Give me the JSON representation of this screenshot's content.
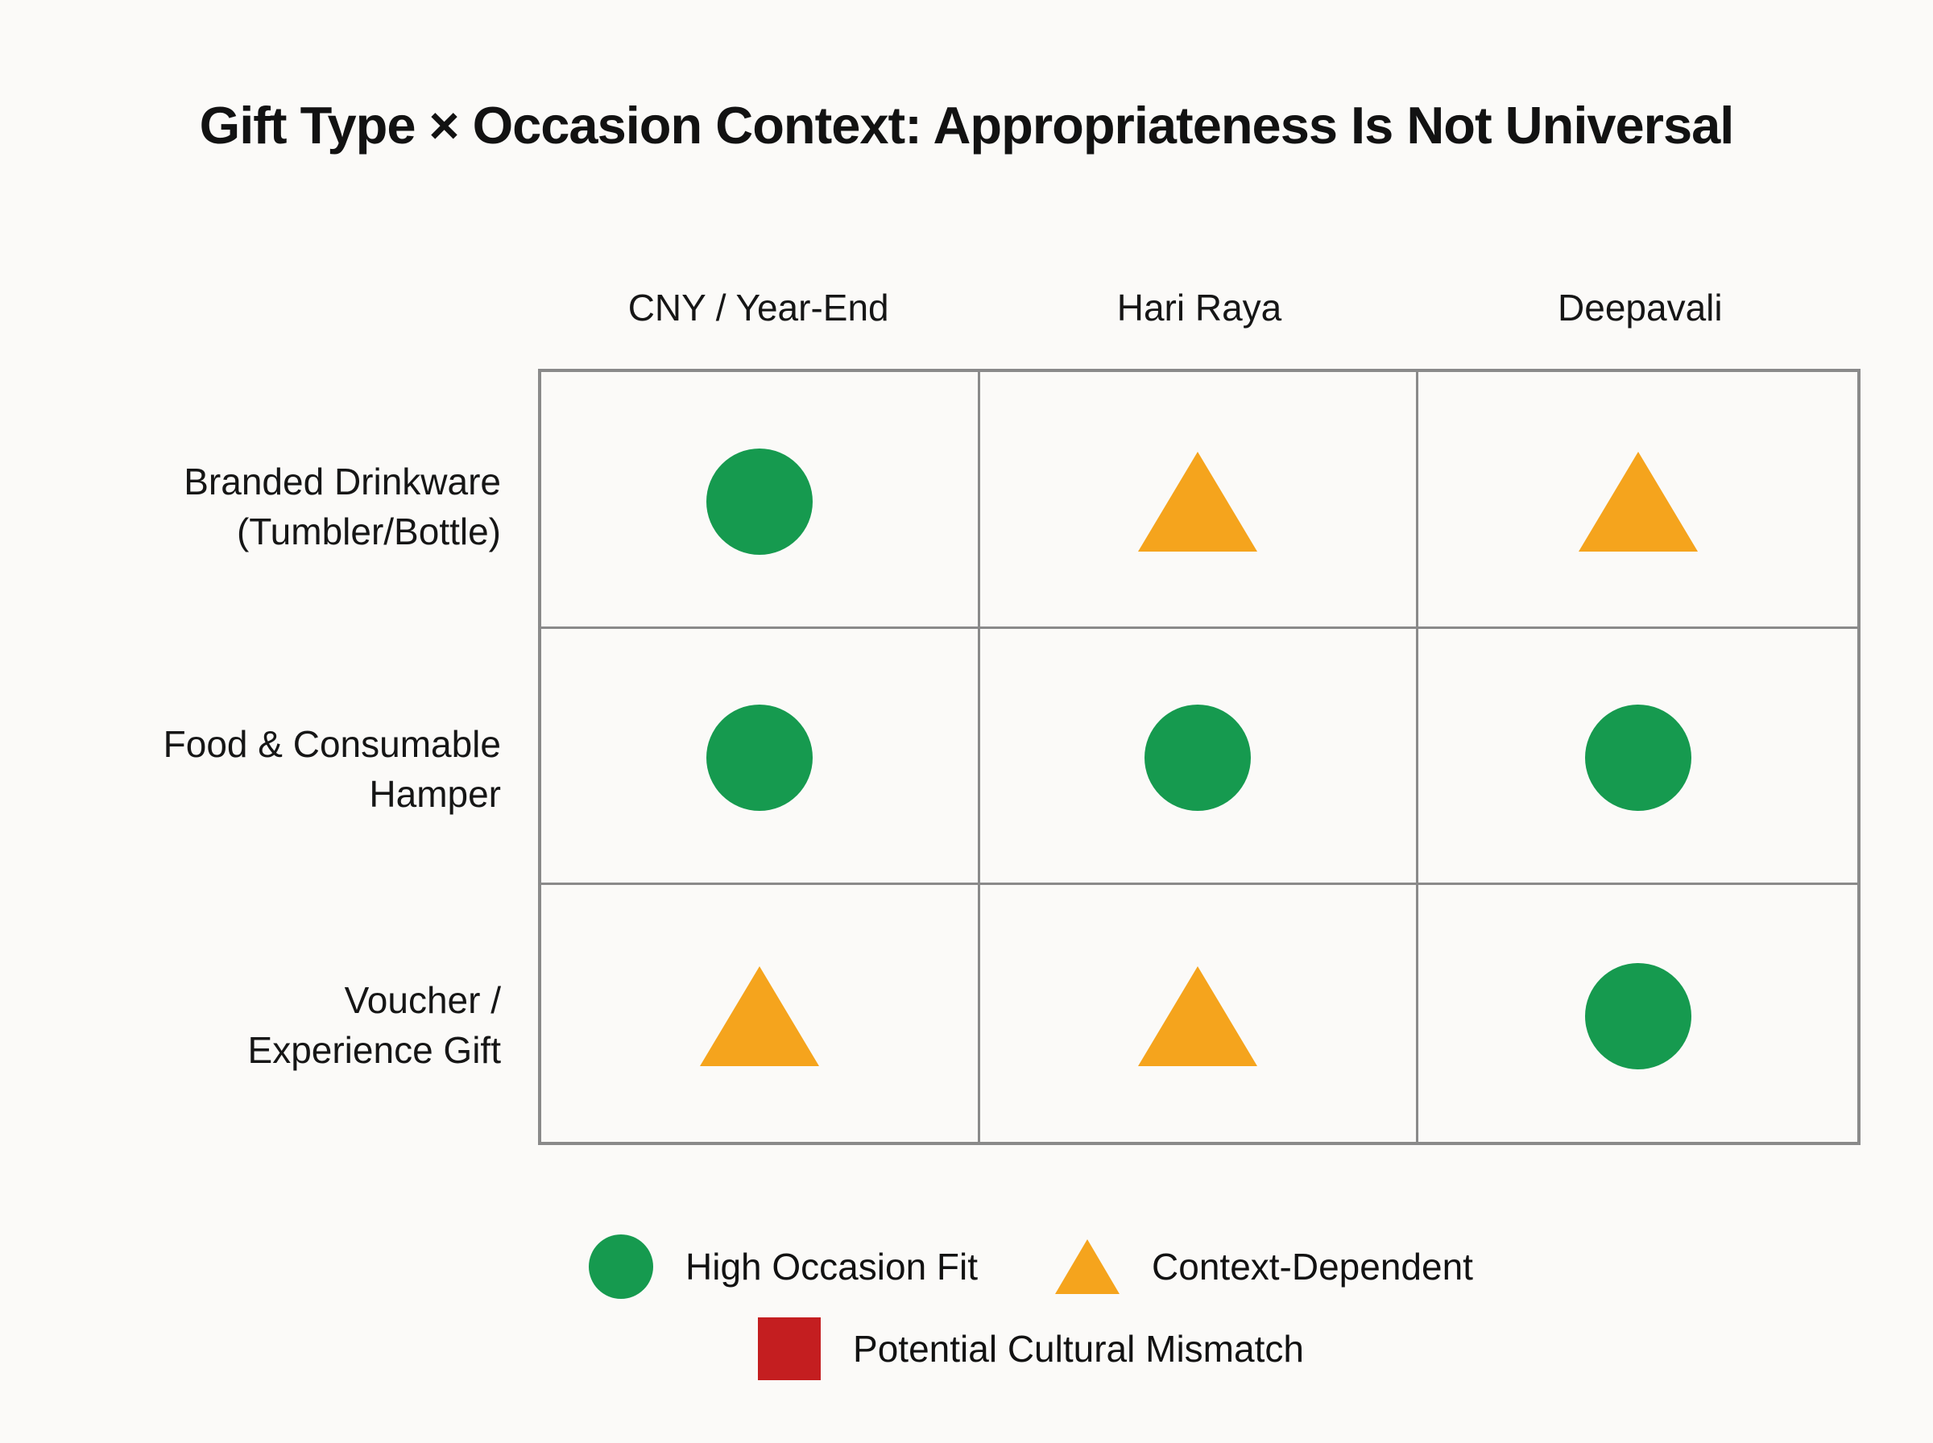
{
  "title": "Gift Type × Occasion Context: Appropriateness Is Not Universal",
  "matrix": {
    "columns": [
      "CNY / Year-End",
      "Hari Raya",
      "Deepavali"
    ],
    "rows": [
      {
        "label": [
          "Branded Drinkware",
          "(Tumbler/Bottle)"
        ],
        "cells": [
          "high-fit",
          "context",
          "context"
        ]
      },
      {
        "label": [
          "Food & Consumable",
          "Hamper"
        ],
        "cells": [
          "high-fit",
          "high-fit",
          "high-fit"
        ]
      },
      {
        "label": [
          "Voucher /",
          "Experience Gift"
        ],
        "cells": [
          "context",
          "context",
          "high-fit"
        ]
      }
    ]
  },
  "legend": [
    {
      "symbol": "circle",
      "label": "High Occasion Fit"
    },
    {
      "symbol": "triangle",
      "label": "Context-Dependent"
    },
    {
      "symbol": "square",
      "label": "Potential Cultural Mismatch"
    }
  ],
  "colors": {
    "fit_green": "#169a4f",
    "context_amber": "#f5a41d",
    "mismatch_red": "#c41e20",
    "grid_line": "#8a8a8a",
    "text": "#161616",
    "background": "#fbfaf8"
  },
  "chart_data": {
    "type": "heatmap",
    "title": "Gift Type × Occasion Context: Appropriateness Is Not Universal",
    "x_categories": [
      "CNY / Year-End",
      "Hari Raya",
      "Deepavali"
    ],
    "y_categories": [
      "Branded Drinkware (Tumbler/Bottle)",
      "Food & Consumable Hamper",
      "Voucher / Experience Gift"
    ],
    "values": [
      [
        "high-occasion-fit",
        "context-dependent",
        "context-dependent"
      ],
      [
        "high-occasion-fit",
        "high-occasion-fit",
        "high-occasion-fit"
      ],
      [
        "context-dependent",
        "context-dependent",
        "high-occasion-fit"
      ]
    ],
    "legend_entries": [
      {
        "symbol": "circle",
        "color": "#169a4f",
        "label": "High Occasion Fit"
      },
      {
        "symbol": "triangle",
        "color": "#f5a41d",
        "label": "Context-Dependent"
      },
      {
        "symbol": "square",
        "color": "#c41e20",
        "label": "Potential Cultural Mismatch"
      }
    ],
    "legend_position": "bottom",
    "grid": true
  }
}
